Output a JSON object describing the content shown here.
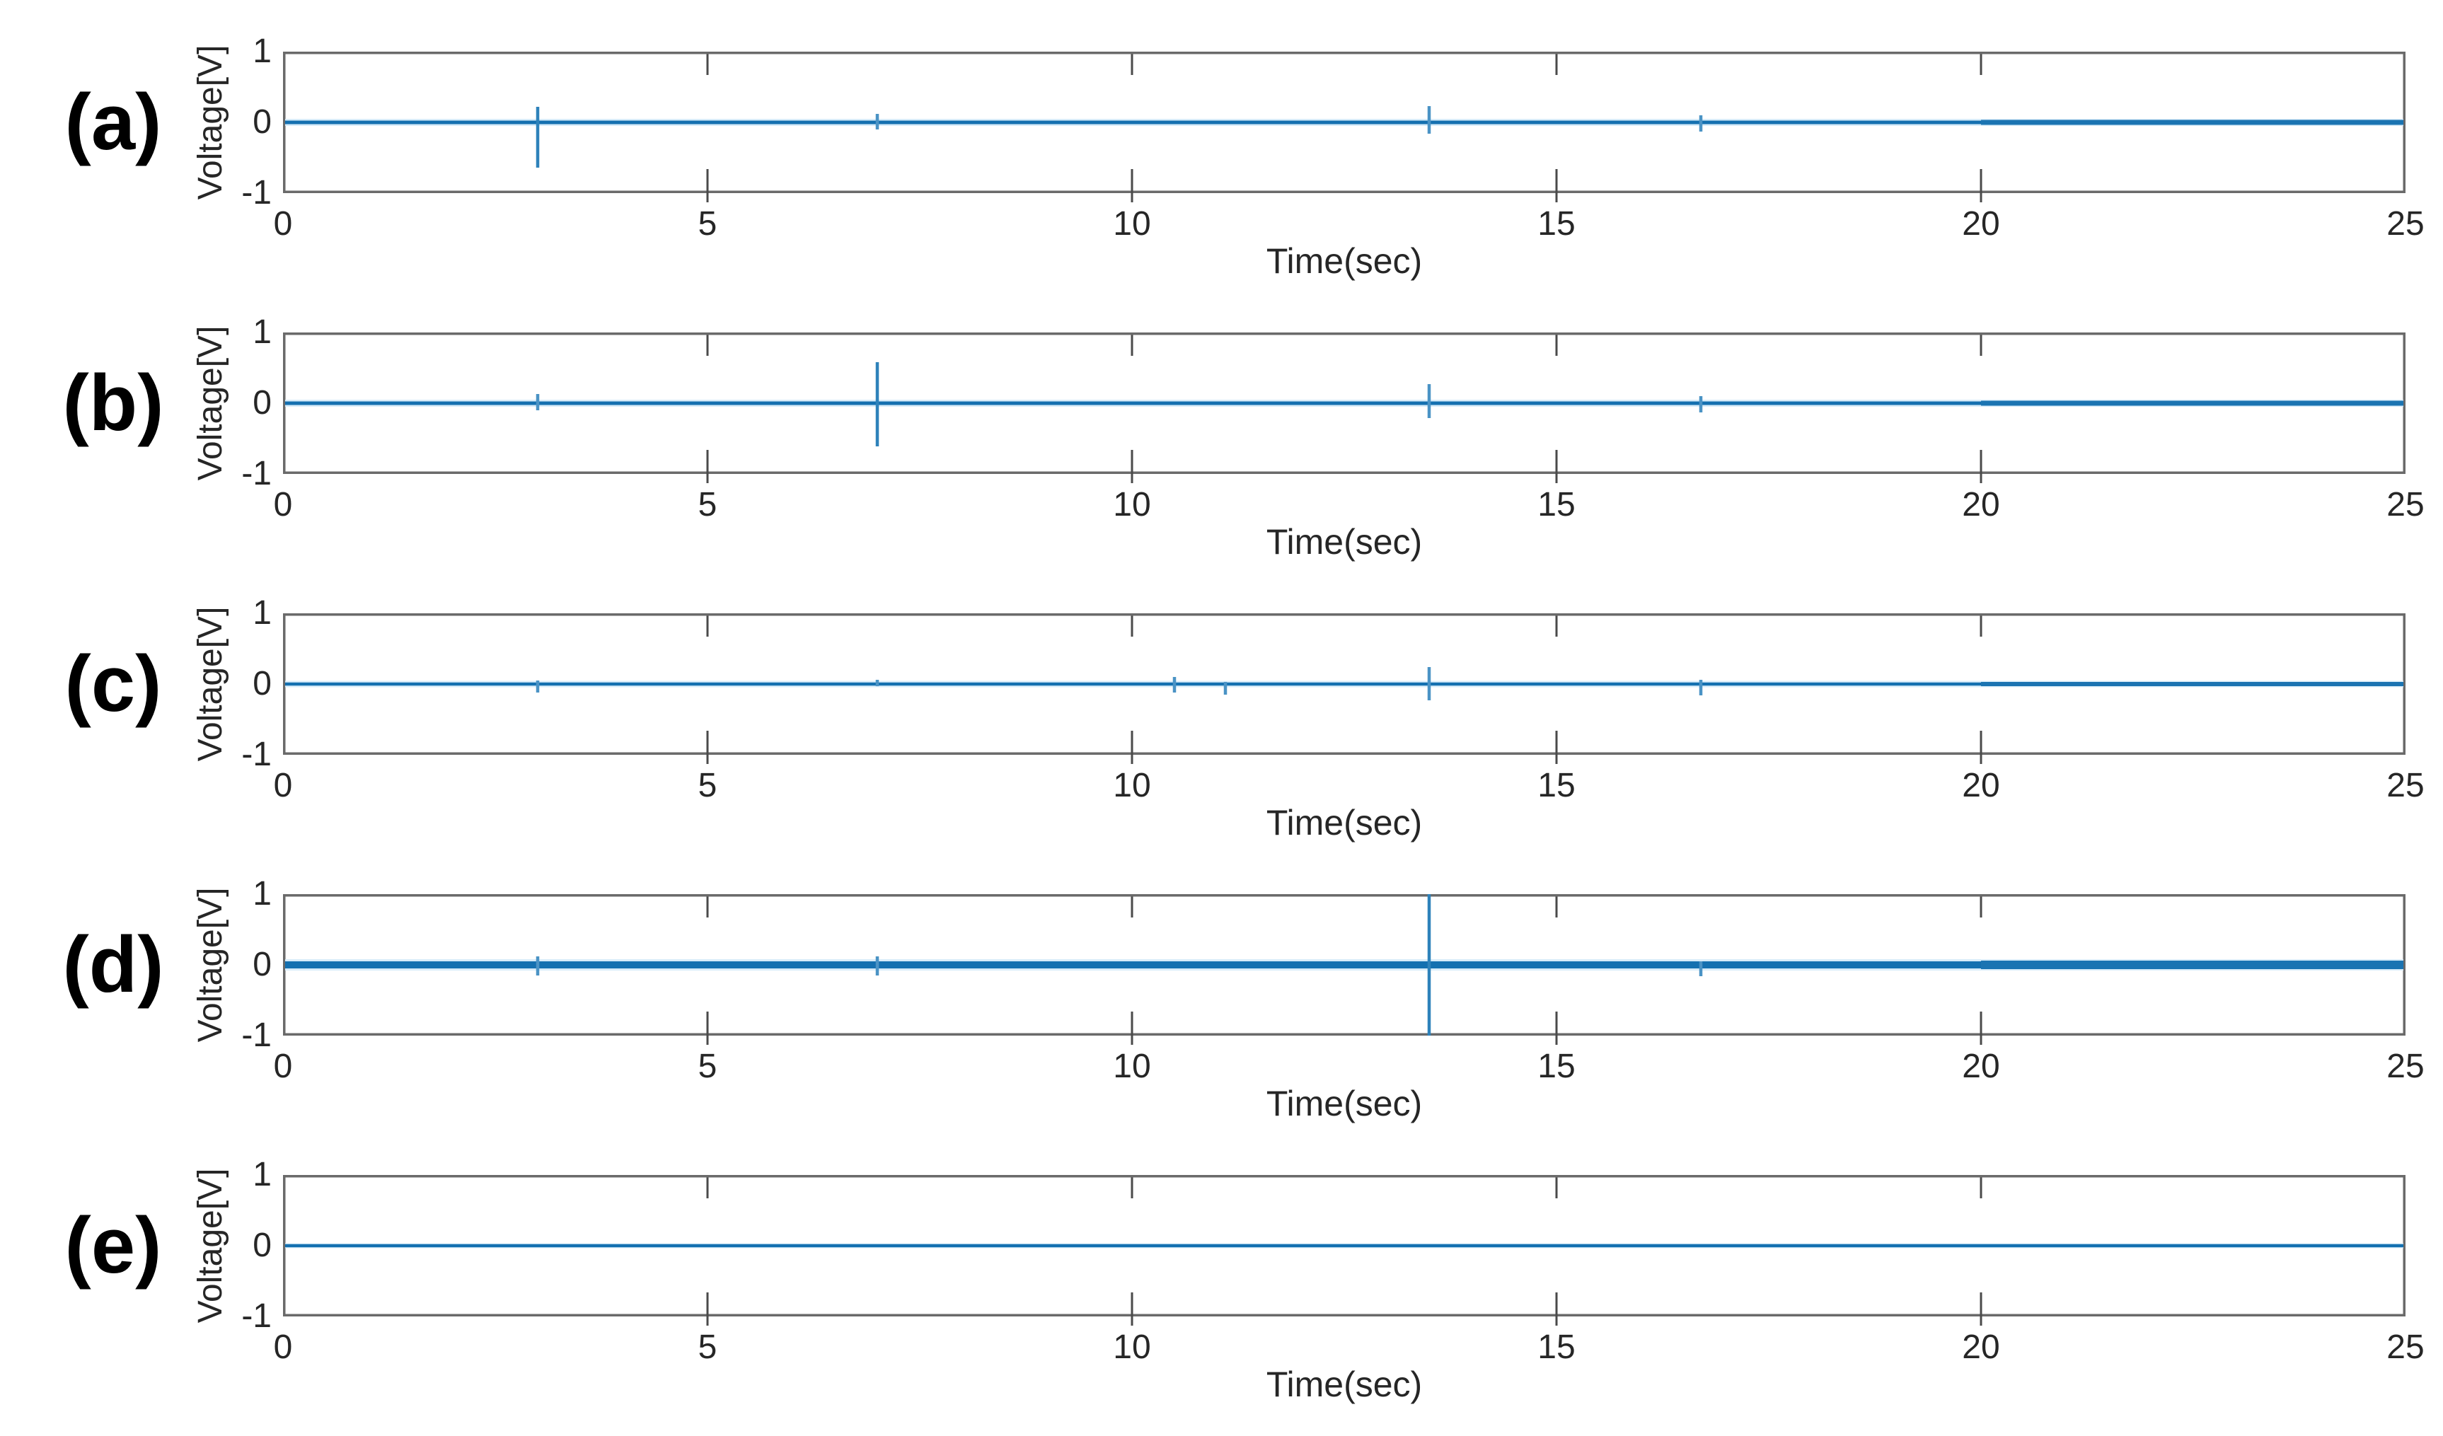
{
  "figure": {
    "background": "#ffffff",
    "colors": {
      "line": "#1470b0",
      "line_post": "#1b74b2",
      "halo": "#d8ecf9",
      "spike_minor": "#4a93c5",
      "spike_major": "#2e82ba",
      "box_stroke": "#6a6a6a",
      "tick_stroke": "#4a4a4a",
      "text": "#262626",
      "panel_label_color": "#000000"
    },
    "x_axis": {
      "label": "Time(sec)",
      "range": [
        0,
        25
      ],
      "ticks": [
        0,
        5,
        10,
        15,
        20,
        25
      ]
    },
    "y_axis": {
      "label": "Voltage[V]",
      "range": [
        -1,
        1
      ],
      "ticks": [
        1,
        0,
        -1
      ]
    },
    "x_tick_labels": [
      "0",
      "5",
      "10",
      "15",
      "20",
      "25"
    ],
    "y_tick_labels": [
      "1",
      "0",
      "-1"
    ]
  },
  "chart_data": [
    {
      "type": "line",
      "panel": "(a)",
      "title": "",
      "xlabel": "Time(sec)",
      "ylabel": "Voltage[V]",
      "x_range": [
        0,
        25
      ],
      "y_range": [
        -1,
        1
      ],
      "grid": false,
      "legend": false,
      "baseline": {
        "level": 0,
        "noise_half": 0.025,
        "halo_half": 0.05,
        "post_noise_half": 0.035,
        "thicker_after_t": 20
      },
      "spikes": [
        {
          "t": 3.0,
          "up": 0.22,
          "down": -0.64
        },
        {
          "t": 7.0,
          "up": 0.12,
          "down": -0.1
        },
        {
          "t": 13.5,
          "up": 0.23,
          "down": -0.16
        },
        {
          "t": 16.7,
          "up": 0.1,
          "down": -0.13
        }
      ]
    },
    {
      "type": "line",
      "panel": "(b)",
      "title": "",
      "xlabel": "Time(sec)",
      "ylabel": "Voltage[V]",
      "x_range": [
        0,
        25
      ],
      "y_range": [
        -1,
        1
      ],
      "grid": false,
      "legend": false,
      "baseline": {
        "level": 0,
        "noise_half": 0.025,
        "halo_half": 0.05,
        "post_noise_half": 0.035,
        "thicker_after_t": 20
      },
      "spikes": [
        {
          "t": 3.0,
          "up": 0.13,
          "down": -0.1
        },
        {
          "t": 7.0,
          "up": 0.58,
          "down": -0.61
        },
        {
          "t": 13.5,
          "up": 0.27,
          "down": -0.21
        },
        {
          "t": 16.7,
          "up": 0.1,
          "down": -0.13
        }
      ]
    },
    {
      "type": "line",
      "panel": "(c)",
      "title": "",
      "xlabel": "Time(sec)",
      "ylabel": "Voltage[V]",
      "x_range": [
        0,
        25
      ],
      "y_range": [
        -1,
        1
      ],
      "grid": false,
      "legend": false,
      "baseline": {
        "level": 0,
        "noise_half": 0.022,
        "halo_half": 0.045,
        "post_noise_half": 0.03,
        "thicker_after_t": 20
      },
      "spikes": [
        {
          "t": 3.0,
          "up": 0.05,
          "down": -0.12
        },
        {
          "t": 7.0,
          "up": 0.06,
          "down": -0.03
        },
        {
          "t": 10.5,
          "up": 0.1,
          "down": -0.12
        },
        {
          "t": 11.1,
          "up": 0.03,
          "down": -0.15
        },
        {
          "t": 13.5,
          "up": 0.24,
          "down": -0.23
        },
        {
          "t": 16.7,
          "up": 0.06,
          "down": -0.16
        }
      ]
    },
    {
      "type": "line",
      "panel": "(d)",
      "title": "",
      "xlabel": "Time(sec)",
      "ylabel": "Voltage[V]",
      "x_range": [
        0,
        25
      ],
      "y_range": [
        -1,
        1
      ],
      "grid": false,
      "legend": false,
      "baseline": {
        "level": 0,
        "noise_half": 0.05,
        "halo_half": 0.08,
        "post_noise_half": 0.06,
        "thicker_after_t": 20
      },
      "spikes": [
        {
          "t": 3.0,
          "up": 0.12,
          "down": -0.15
        },
        {
          "t": 7.0,
          "up": 0.12,
          "down": -0.15
        },
        {
          "t": 13.5,
          "up": 1.0,
          "down": -1.0
        },
        {
          "t": 16.7,
          "up": 0.05,
          "down": -0.16
        }
      ]
    },
    {
      "type": "line",
      "panel": "(e)",
      "title": "",
      "xlabel": "Time(sec)",
      "ylabel": "Voltage[V]",
      "x_range": [
        0,
        25
      ],
      "y_range": [
        -1,
        1
      ],
      "grid": false,
      "legend": false,
      "baseline": {
        "level": 0,
        "noise_half": 0.022,
        "halo_half": 0.035,
        "post_noise_half": 0.022,
        "thicker_after_t": null
      },
      "spikes": []
    }
  ]
}
